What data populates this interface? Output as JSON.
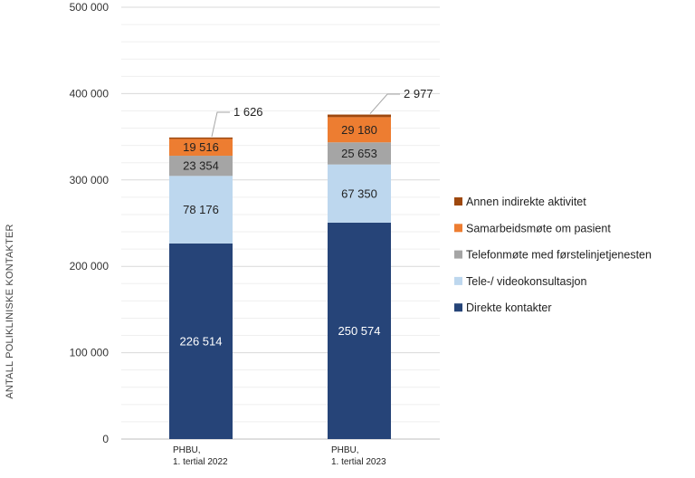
{
  "chart_data": {
    "type": "bar",
    "stacked": true,
    "categories": [
      [
        "PHBU,",
        "1. tertial 2022"
      ],
      [
        "PHBU,",
        "1. tertial 2023"
      ]
    ],
    "series": [
      {
        "name": "Direkte kontakter",
        "color": "#264478",
        "label_color": "#ffffff",
        "values": [
          226514,
          250574
        ],
        "labels": [
          "226 514",
          "250 574"
        ]
      },
      {
        "name": "Tele-/ videokonsultasjon",
        "color": "#BDD7EE",
        "label_color": "#222222",
        "values": [
          78176,
          67350
        ],
        "labels": [
          "78 176",
          "67 350"
        ]
      },
      {
        "name": "Telefonmøte med førstelinjetjenesten",
        "color": "#A5A5A5",
        "label_color": "#222222",
        "values": [
          23354,
          25653
        ],
        "labels": [
          "23 354",
          "25 653"
        ]
      },
      {
        "name": "Samarbeidsmøte om pasient",
        "color": "#ED7D31",
        "label_color": "#222222",
        "values": [
          19516,
          29180
        ],
        "labels": [
          "19 516",
          "29 180"
        ]
      },
      {
        "name": "Annen indirekte aktivitet",
        "color": "#9E480E",
        "label_color": "#222222",
        "values": [
          1626,
          2977
        ],
        "labels": [
          "1 626",
          "2 977"
        ]
      }
    ],
    "ylabel": "ANTALL POLIKLINISKE KONTAKTER",
    "ylim": [
      0,
      500000
    ],
    "yticks": [
      0,
      100000,
      200000,
      300000,
      400000,
      500000
    ],
    "ytick_labels": [
      "0",
      "100 000",
      "200 000",
      "300 000",
      "400 000",
      "500 000"
    ],
    "grid": true,
    "legend_position": "right"
  }
}
